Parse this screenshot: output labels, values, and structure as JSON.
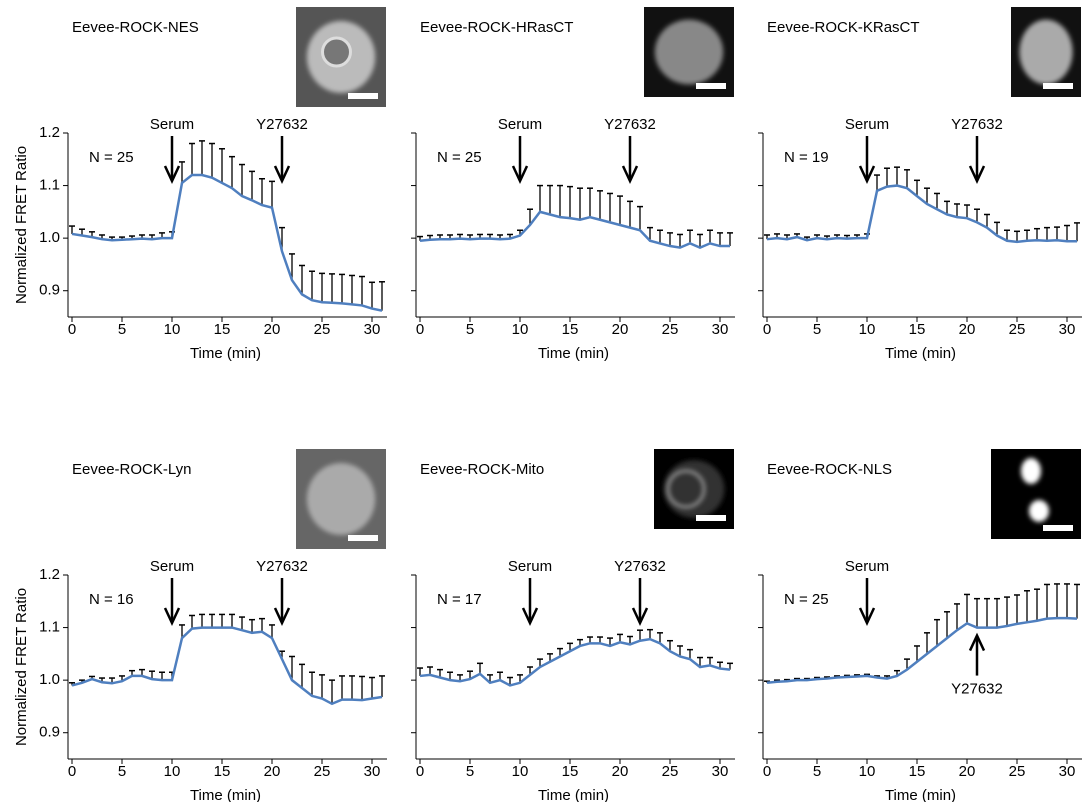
{
  "chart_data": [
    {
      "type": "line",
      "title": "Eevee-ROCK-NES",
      "note": "N = 25",
      "xlabel": "Time (min)",
      "ylabel": "Normalized FRET Ratio",
      "color": "#4f7fbf",
      "x": [
        0,
        1,
        2,
        3,
        4,
        5,
        6,
        7,
        8,
        9,
        10,
        11,
        12,
        13,
        14,
        15,
        16,
        17,
        18,
        19,
        20,
        21,
        22,
        23,
        24,
        25,
        26,
        27,
        28,
        29,
        30,
        31
      ],
      "values": [
        1.008,
        1.005,
        1.002,
        0.998,
        0.996,
        0.997,
        0.998,
        0.999,
        0.998,
        1.0,
        1.0,
        1.105,
        1.12,
        1.12,
        1.115,
        1.105,
        1.095,
        1.08,
        1.072,
        1.063,
        1.058,
        0.975,
        0.92,
        0.893,
        0.882,
        0.878,
        0.877,
        0.876,
        0.874,
        0.872,
        0.866,
        0.862
      ],
      "errors": [
        0.015,
        0.012,
        0.01,
        0.008,
        0.006,
        0.005,
        0.006,
        0.007,
        0.008,
        0.01,
        0.012,
        0.04,
        0.06,
        0.065,
        0.065,
        0.065,
        0.06,
        0.06,
        0.055,
        0.05,
        0.05,
        0.045,
        0.05,
        0.055,
        0.055,
        0.055,
        0.055,
        0.055,
        0.055,
        0.055,
        0.05,
        0.055
      ],
      "xlim": [
        0,
        31.5
      ],
      "xticks": [
        0,
        5,
        10,
        15,
        20,
        25,
        30
      ],
      "ylim": [
        0.85,
        1.2
      ],
      "yticks": [
        0.9,
        {
          "value": 1,
          "label": "1.0"
        },
        1.1,
        1.2
      ],
      "annotations": [
        {
          "text": "Serum",
          "x": 10,
          "direction": "down"
        },
        {
          "text": "Y27632",
          "x": 21,
          "direction": "down"
        }
      ]
    },
    {
      "type": "line",
      "title": "Eevee-ROCK-HRasCT",
      "note": "N = 25",
      "xlabel": "Time (min)",
      "color": "#4f7fbf",
      "x": [
        0,
        1,
        2,
        3,
        4,
        5,
        6,
        7,
        8,
        9,
        10,
        11,
        12,
        13,
        14,
        15,
        16,
        17,
        18,
        19,
        20,
        21,
        22,
        23,
        24,
        25,
        26,
        27,
        28,
        29,
        30,
        31
      ],
      "values": [
        0.995,
        0.997,
        0.998,
        0.998,
        0.999,
        0.998,
        0.999,
        0.999,
        0.998,
        0.999,
        1.005,
        1.025,
        1.05,
        1.045,
        1.04,
        1.038,
        1.035,
        1.04,
        1.035,
        1.03,
        1.025,
        1.02,
        1.015,
        0.995,
        0.99,
        0.985,
        0.982,
        0.99,
        0.982,
        0.99,
        0.985,
        0.985
      ],
      "errors": [
        0.008,
        0.008,
        0.008,
        0.008,
        0.008,
        0.008,
        0.008,
        0.008,
        0.008,
        0.008,
        0.01,
        0.03,
        0.05,
        0.055,
        0.06,
        0.06,
        0.06,
        0.055,
        0.055,
        0.055,
        0.055,
        0.05,
        0.045,
        0.025,
        0.025,
        0.025,
        0.025,
        0.025,
        0.025,
        0.025,
        0.025,
        0.025
      ],
      "xlim": [
        0,
        31.5
      ],
      "xticks": [
        0,
        5,
        10,
        15,
        20,
        25,
        30
      ],
      "ylim": [
        0.85,
        1.2
      ],
      "yticks": [
        0.9,
        {
          "value": 1,
          "label": "1.0"
        },
        1.1,
        1.2
      ],
      "annotations": [
        {
          "text": "Serum",
          "x": 10,
          "direction": "down"
        },
        {
          "text": "Y27632",
          "x": 21,
          "direction": "down"
        }
      ]
    },
    {
      "type": "line",
      "title": "Eevee-ROCK-KRasCT",
      "note": "N = 19",
      "xlabel": "Time (min)",
      "color": "#4f7fbf",
      "x": [
        0,
        1,
        2,
        3,
        4,
        5,
        6,
        7,
        8,
        9,
        10,
        11,
        12,
        13,
        14,
        15,
        16,
        17,
        18,
        19,
        20,
        21,
        22,
        23,
        24,
        25,
        26,
        27,
        28,
        29,
        30,
        31
      ],
      "values": [
        0.998,
        1.0,
        0.998,
        1.002,
        0.996,
        1.0,
        0.998,
        1.0,
        0.999,
        1.0,
        1.0,
        1.09,
        1.098,
        1.1,
        1.095,
        1.08,
        1.065,
        1.055,
        1.045,
        1.04,
        1.038,
        1.03,
        1.02,
        1.005,
        0.995,
        0.993,
        0.995,
        0.996,
        0.995,
        0.996,
        0.994,
        0.994
      ],
      "errors": [
        0.008,
        0.008,
        0.008,
        0.006,
        0.006,
        0.006,
        0.006,
        0.006,
        0.006,
        0.006,
        0.008,
        0.03,
        0.035,
        0.035,
        0.035,
        0.03,
        0.03,
        0.03,
        0.025,
        0.025,
        0.025,
        0.025,
        0.025,
        0.025,
        0.02,
        0.02,
        0.02,
        0.022,
        0.025,
        0.025,
        0.03,
        0.035
      ],
      "xlim": [
        0,
        31.5
      ],
      "xticks": [
        0,
        5,
        10,
        15,
        20,
        25,
        30
      ],
      "ylim": [
        0.85,
        1.2
      ],
      "yticks": [
        0.9,
        {
          "value": 1,
          "label": "1.0"
        },
        1.1,
        1.2
      ],
      "annotations": [
        {
          "text": "Serum",
          "x": 10,
          "direction": "down"
        },
        {
          "text": "Y27632",
          "x": 21,
          "direction": "down"
        }
      ]
    },
    {
      "type": "line",
      "title": "Eevee-ROCK-Lyn",
      "note": "N = 16",
      "xlabel": "Time (min)",
      "ylabel": "Normalized FRET Ratio",
      "color": "#4f7fbf",
      "x": [
        0,
        1,
        2,
        3,
        4,
        5,
        6,
        7,
        8,
        9,
        10,
        11,
        12,
        13,
        14,
        15,
        16,
        17,
        18,
        19,
        20,
        21,
        22,
        23,
        24,
        25,
        26,
        27,
        28,
        29,
        30,
        31
      ],
      "values": [
        0.99,
        0.995,
        1.002,
        0.996,
        0.994,
        0.998,
        1.008,
        1.008,
        1.002,
        1.0,
        1.0,
        1.08,
        1.098,
        1.1,
        1.1,
        1.1,
        1.1,
        1.095,
        1.09,
        1.092,
        1.08,
        1.04,
        1.0,
        0.985,
        0.97,
        0.965,
        0.955,
        0.963,
        0.963,
        0.962,
        0.965,
        0.968
      ],
      "errors": [
        0.005,
        0.005,
        0.005,
        0.008,
        0.01,
        0.01,
        0.01,
        0.012,
        0.015,
        0.015,
        0.015,
        0.025,
        0.025,
        0.025,
        0.025,
        0.025,
        0.025,
        0.025,
        0.025,
        0.025,
        0.025,
        0.015,
        0.045,
        0.045,
        0.045,
        0.045,
        0.045,
        0.045,
        0.045,
        0.045,
        0.04,
        0.04
      ],
      "xlim": [
        0,
        31.5
      ],
      "xticks": [
        0,
        5,
        10,
        15,
        20,
        25,
        30
      ],
      "ylim": [
        0.85,
        1.2
      ],
      "yticks": [
        0.9,
        {
          "value": 1,
          "label": "1.0"
        },
        1.1,
        1.2
      ],
      "annotations": [
        {
          "text": "Serum",
          "x": 10,
          "direction": "down"
        },
        {
          "text": "Y27632",
          "x": 21,
          "direction": "down"
        }
      ]
    },
    {
      "type": "line",
      "title": "Eevee-ROCK-Mito",
      "note": "N = 17",
      "xlabel": "Time (min)",
      "color": "#4f7fbf",
      "x": [
        0,
        1,
        2,
        3,
        4,
        5,
        6,
        7,
        8,
        9,
        10,
        11,
        12,
        13,
        14,
        15,
        16,
        17,
        18,
        19,
        20,
        21,
        22,
        23,
        24,
        25,
        26,
        27,
        28,
        29,
        30,
        31
      ],
      "values": [
        1.008,
        1.01,
        1.005,
        1.0,
        0.998,
        1.002,
        1.012,
        0.995,
        1.0,
        0.99,
        0.995,
        1.01,
        1.025,
        1.035,
        1.045,
        1.055,
        1.065,
        1.07,
        1.07,
        1.065,
        1.072,
        1.068,
        1.075,
        1.078,
        1.07,
        1.055,
        1.045,
        1.04,
        1.025,
        1.028,
        1.022,
        1.02
      ],
      "errors": [
        0.015,
        0.015,
        0.015,
        0.015,
        0.012,
        0.015,
        0.02,
        0.015,
        0.015,
        0.015,
        0.015,
        0.015,
        0.015,
        0.015,
        0.015,
        0.015,
        0.012,
        0.012,
        0.012,
        0.015,
        0.015,
        0.015,
        0.02,
        0.018,
        0.02,
        0.02,
        0.02,
        0.018,
        0.018,
        0.015,
        0.012,
        0.012
      ],
      "xlim": [
        0,
        31.5
      ],
      "xticks": [
        0,
        5,
        10,
        15,
        20,
        25,
        30
      ],
      "ylim": [
        0.85,
        1.2
      ],
      "yticks": [
        0.9,
        {
          "value": 1,
          "label": "1.0"
        },
        1.1,
        1.2
      ],
      "annotations": [
        {
          "text": "Serum",
          "x": 11,
          "direction": "down"
        },
        {
          "text": "Y27632",
          "x": 22,
          "direction": "down"
        }
      ]
    },
    {
      "type": "line",
      "title": "Eevee-ROCK-NLS",
      "note": "N = 25",
      "xlabel": "Time (min)",
      "color": "#4f7fbf",
      "x": [
        0,
        1,
        2,
        3,
        4,
        5,
        6,
        7,
        8,
        9,
        10,
        11,
        12,
        13,
        14,
        15,
        16,
        17,
        18,
        19,
        20,
        21,
        22,
        23,
        24,
        25,
        26,
        27,
        28,
        29,
        30,
        31
      ],
      "values": [
        0.995,
        0.997,
        0.998,
        1.0,
        1.0,
        1.002,
        1.003,
        1.005,
        1.006,
        1.007,
        1.008,
        1.005,
        1.003,
        1.008,
        1.02,
        1.035,
        1.05,
        1.065,
        1.08,
        1.095,
        1.108,
        1.1,
        1.1,
        1.1,
        1.103,
        1.107,
        1.11,
        1.113,
        1.117,
        1.118,
        1.118,
        1.117
      ],
      "errors": [
        0.003,
        0.003,
        0.003,
        0.003,
        0.003,
        0.003,
        0.003,
        0.003,
        0.003,
        0.003,
        0.003,
        0.003,
        0.005,
        0.01,
        0.02,
        0.03,
        0.04,
        0.05,
        0.05,
        0.05,
        0.055,
        0.055,
        0.055,
        0.055,
        0.055,
        0.055,
        0.06,
        0.06,
        0.065,
        0.065,
        0.065,
        0.065
      ],
      "xlim": [
        0,
        31.5
      ],
      "xticks": [
        0,
        5,
        10,
        15,
        20,
        25,
        30
      ],
      "ylim": [
        0.85,
        1.2
      ],
      "yticks": [
        0.9,
        {
          "value": 1,
          "label": "1.0"
        },
        1.1,
        1.2
      ],
      "annotations": [
        {
          "text": "Serum",
          "x": 10,
          "direction": "down"
        },
        {
          "text": "Y27632",
          "x": 21,
          "direction": "up"
        }
      ]
    }
  ]
}
